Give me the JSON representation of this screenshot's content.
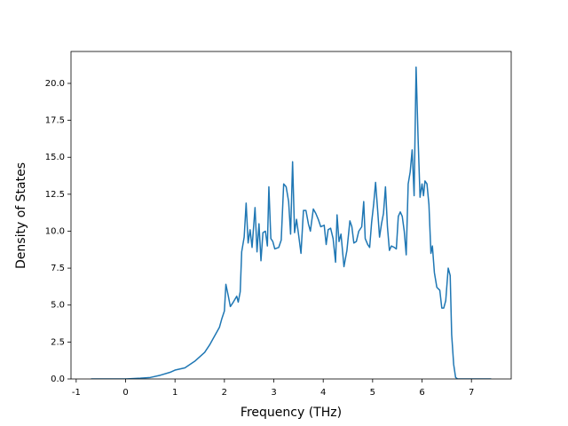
{
  "chart_data": {
    "type": "line",
    "xlabel": "Frequency (THz)",
    "ylabel": "Density of States",
    "color": "#1f77b4",
    "x": [
      -0.7,
      0,
      0.3,
      0.5,
      0.7,
      0.9,
      1.0,
      1.2,
      1.4,
      1.6,
      1.7,
      1.8,
      1.9,
      1.95,
      2.0,
      2.03,
      2.08,
      2.12,
      2.18,
      2.25,
      2.28,
      2.32,
      2.35,
      2.4,
      2.44,
      2.48,
      2.52,
      2.56,
      2.62,
      2.66,
      2.7,
      2.74,
      2.78,
      2.83,
      2.87,
      2.9,
      2.94,
      2.98,
      3.02,
      3.1,
      3.15,
      3.2,
      3.25,
      3.3,
      3.34,
      3.38,
      3.42,
      3.46,
      3.5,
      3.55,
      3.6,
      3.65,
      3.7,
      3.74,
      3.8,
      3.85,
      3.9,
      3.95,
      4.02,
      4.06,
      4.1,
      4.15,
      4.2,
      4.25,
      4.28,
      4.32,
      4.36,
      4.42,
      4.48,
      4.54,
      4.58,
      4.62,
      4.67,
      4.72,
      4.78,
      4.82,
      4.85,
      4.9,
      4.94,
      4.98,
      5.02,
      5.06,
      5.1,
      5.14,
      5.18,
      5.22,
      5.26,
      5.3,
      5.34,
      5.38,
      5.44,
      5.48,
      5.52,
      5.56,
      5.6,
      5.64,
      5.68,
      5.72,
      5.76,
      5.8,
      5.84,
      5.88,
      5.92,
      5.96,
      6.0,
      6.03,
      6.06,
      6.1,
      6.14,
      6.18,
      6.21,
      6.25,
      6.3,
      6.36,
      6.4,
      6.44,
      6.48,
      6.53,
      6.57,
      6.6,
      6.64,
      6.68,
      6.72,
      7.0,
      7.4
    ],
    "values": [
      0,
      0,
      0.05,
      0.1,
      0.25,
      0.45,
      0.6,
      0.75,
      1.2,
      1.8,
      2.3,
      2.9,
      3.5,
      4.1,
      4.6,
      6.4,
      5.6,
      4.9,
      5.2,
      5.6,
      5.2,
      5.9,
      8.6,
      9.6,
      11.9,
      9.2,
      10.1,
      8.9,
      11.6,
      8.6,
      10.5,
      8.0,
      9.9,
      10.0,
      9.0,
      13.0,
      9.5,
      9.3,
      8.8,
      8.9,
      9.4,
      13.2,
      13.0,
      12.0,
      9.8,
      14.7,
      9.9,
      10.8,
      9.8,
      8.5,
      11.4,
      11.4,
      10.5,
      10.0,
      11.5,
      11.2,
      10.8,
      10.3,
      10.4,
      9.1,
      10.1,
      10.2,
      9.5,
      7.9,
      11.1,
      9.3,
      9.8,
      7.6,
      8.7,
      10.7,
      10.3,
      9.2,
      9.3,
      10.0,
      10.3,
      12.0,
      9.5,
      9.1,
      8.9,
      10.6,
      11.8,
      13.3,
      11.5,
      9.6,
      10.5,
      11.2,
      13.0,
      10.3,
      8.7,
      9.0,
      8.9,
      8.8,
      11.0,
      11.3,
      11.0,
      10.0,
      8.4,
      13.2,
      14.0,
      15.5,
      12.4,
      21.1,
      16.3,
      12.3,
      13.2,
      12.4,
      13.4,
      13.2,
      11.8,
      8.5,
      9.0,
      7.2,
      6.2,
      6.0,
      4.8,
      4.8,
      5.3,
      7.5,
      7.0,
      3.0,
      1.0,
      0.1,
      0,
      0,
      0
    ],
    "xlim": [
      -1.105,
      7.805
    ],
    "ylim": [
      0,
      22.16
    ],
    "xticks": [
      -1,
      0,
      1,
      2,
      3,
      4,
      5,
      6,
      7
    ],
    "yticks": [
      {
        "value": 0,
        "label": "0.0"
      },
      {
        "value": 2.5,
        "label": "2.5"
      },
      {
        "value": 5,
        "label": "5.0"
      },
      {
        "value": 7.5,
        "label": "7.5"
      },
      {
        "value": 10,
        "label": "10.0"
      },
      {
        "value": 12.5,
        "label": "12.5"
      },
      {
        "value": 15,
        "label": "15.0"
      },
      {
        "value": 17.5,
        "label": "17.5"
      },
      {
        "value": 20,
        "label": "20.0"
      }
    ]
  }
}
